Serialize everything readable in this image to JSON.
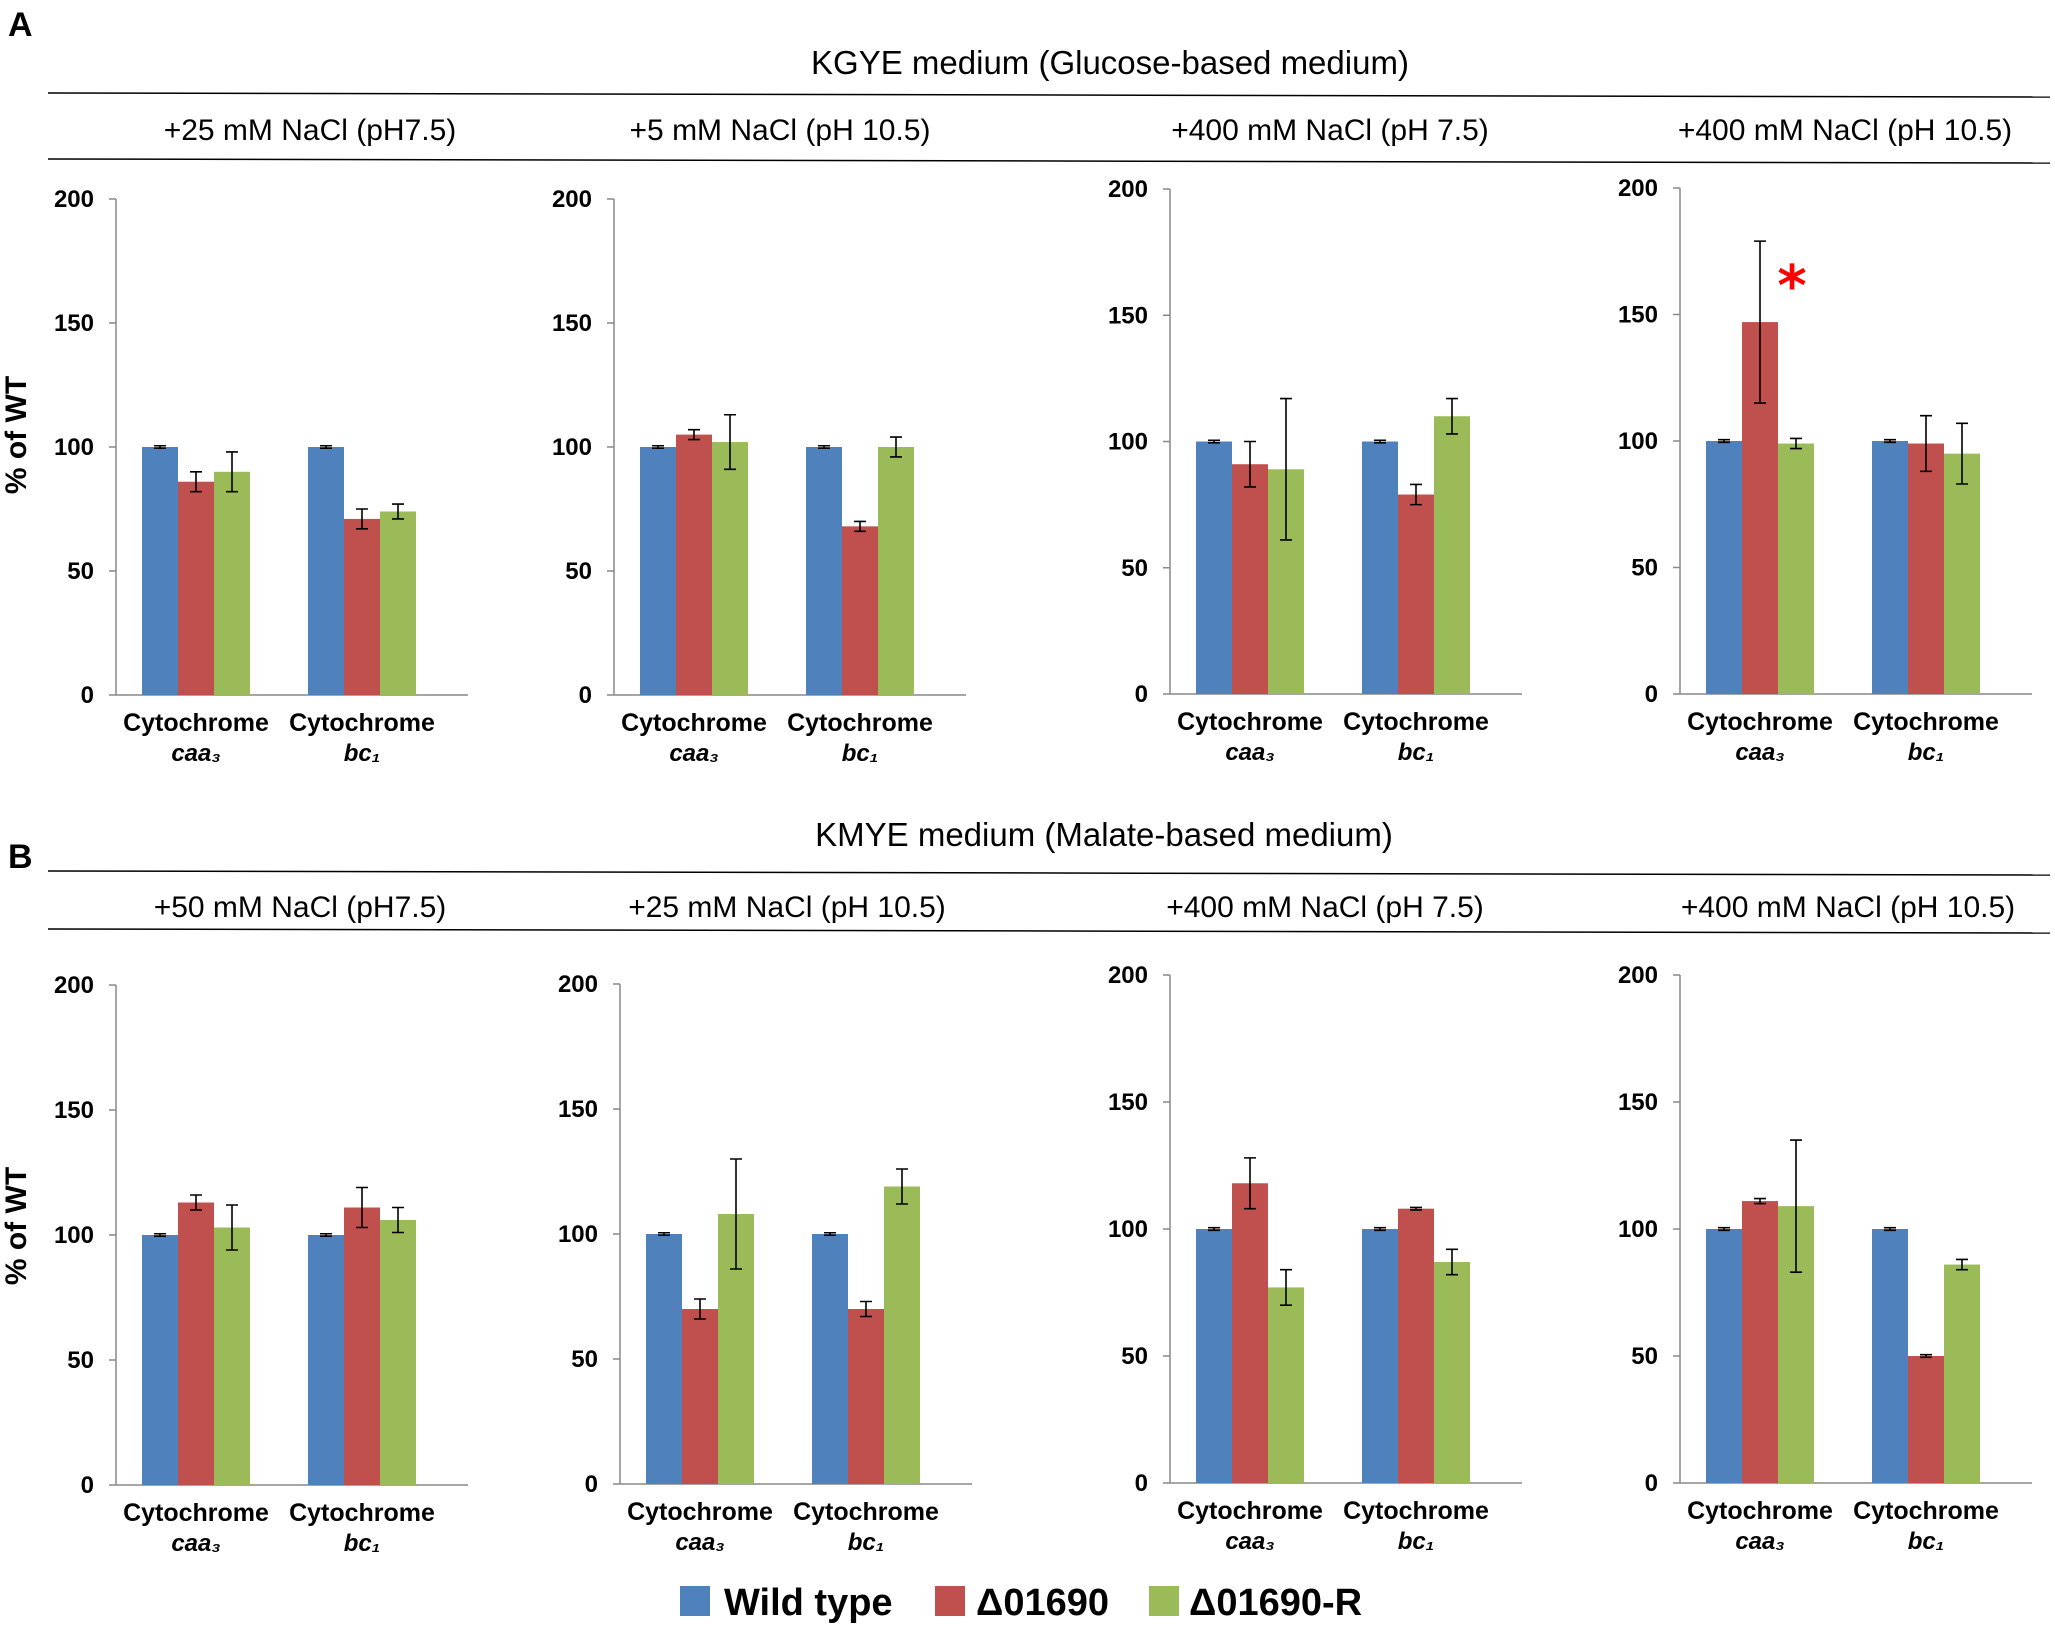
{
  "colors": {
    "Wild type": "#4f81bd",
    "Δ01690": "#c0504d",
    "Δ01690-R": "#9bbb59"
  },
  "legend": {
    "items": [
      {
        "label": "Wild type"
      },
      {
        "label": "Δ01690"
      },
      {
        "label": "Δ01690-R"
      }
    ]
  },
  "panels": [
    {
      "letter": "A",
      "medium": "KGYE medium (Glucose-based medium)",
      "ylabel": "% of WT"
    },
    {
      "letter": "B",
      "medium": "KMYE medium (Malate-based medium)",
      "ylabel": "% of WT"
    }
  ],
  "chart_data": [
    {
      "type": "bar",
      "panel": "A",
      "title": "+25 mM NaCl (pH7.5)",
      "categories": [
        {
          "name": "Cytochrome",
          "sub": "caa₃"
        },
        {
          "name": "Cytochrome",
          "sub": "bc₁"
        }
      ],
      "series": [
        {
          "name": "Wild type",
          "values": [
            100,
            100
          ],
          "errors": [
            0.5,
            0.5
          ]
        },
        {
          "name": "Δ01690",
          "values": [
            86,
            71
          ],
          "errors": [
            4,
            4
          ]
        },
        {
          "name": "Δ01690-R",
          "values": [
            90,
            74
          ],
          "errors": [
            8,
            3
          ]
        }
      ],
      "ylim": [
        0,
        200
      ],
      "yticks": [
        0,
        50,
        100,
        150,
        200
      ],
      "ylabel": "% of WT"
    },
    {
      "type": "bar",
      "panel": "A",
      "title": "+5 mM  NaCl (pH 10.5)",
      "categories": [
        {
          "name": "Cytochrome",
          "sub": "caa₃"
        },
        {
          "name": "Cytochrome",
          "sub": "bc₁"
        }
      ],
      "series": [
        {
          "name": "Wild type",
          "values": [
            100,
            100
          ],
          "errors": [
            0.5,
            0.5
          ]
        },
        {
          "name": "Δ01690",
          "values": [
            105,
            68
          ],
          "errors": [
            2,
            2
          ]
        },
        {
          "name": "Δ01690-R",
          "values": [
            102,
            100
          ],
          "errors": [
            11,
            4
          ]
        }
      ],
      "ylim": [
        0,
        200
      ],
      "yticks": [
        0,
        50,
        100,
        150,
        200
      ],
      "ylabel": ""
    },
    {
      "type": "bar",
      "panel": "A",
      "title": "+400 mM NaCl (pH 7.5)",
      "categories": [
        {
          "name": "Cytochrome",
          "sub": "caa₃"
        },
        {
          "name": "Cytochrome",
          "sub": "bc₁"
        }
      ],
      "series": [
        {
          "name": "Wild type",
          "values": [
            100,
            100
          ],
          "errors": [
            0.5,
            0.5
          ]
        },
        {
          "name": "Δ01690",
          "values": [
            91,
            79
          ],
          "errors": [
            9,
            4
          ]
        },
        {
          "name": "Δ01690-R",
          "values": [
            89,
            110
          ],
          "errors": [
            28,
            7
          ]
        }
      ],
      "ylim": [
        0,
        200
      ],
      "yticks": [
        0,
        50,
        100,
        150,
        200
      ],
      "ylabel": ""
    },
    {
      "type": "bar",
      "panel": "A",
      "title": "+400 mM NaCl (pH 10.5)",
      "categories": [
        {
          "name": "Cytochrome",
          "sub": "caa₃"
        },
        {
          "name": "Cytochrome",
          "sub": "bc₁"
        }
      ],
      "series": [
        {
          "name": "Wild type",
          "values": [
            100,
            100
          ],
          "errors": [
            0.5,
            0.5
          ]
        },
        {
          "name": "Δ01690",
          "values": [
            147,
            99
          ],
          "errors": [
            32,
            11
          ]
        },
        {
          "name": "Δ01690-R",
          "values": [
            99,
            95
          ],
          "errors": [
            2,
            12
          ]
        }
      ],
      "ylim": [
        0,
        200
      ],
      "yticks": [
        0,
        50,
        100,
        150,
        200
      ],
      "ylabel": "",
      "annotations": [
        {
          "text": "*",
          "category": 0,
          "series": 1,
          "color": "#ff0000"
        }
      ]
    },
    {
      "type": "bar",
      "panel": "B",
      "title": "+50 mM NaCl (pH7.5)",
      "categories": [
        {
          "name": "Cytochrome",
          "sub": "caa₃"
        },
        {
          "name": "Cytochrome",
          "sub": "bc₁"
        }
      ],
      "series": [
        {
          "name": "Wild type",
          "values": [
            100,
            100
          ],
          "errors": [
            0.5,
            0.5
          ]
        },
        {
          "name": "Δ01690",
          "values": [
            113,
            111
          ],
          "errors": [
            3,
            8
          ]
        },
        {
          "name": "Δ01690-R",
          "values": [
            103,
            106
          ],
          "errors": [
            9,
            5
          ]
        }
      ],
      "ylim": [
        0,
        200
      ],
      "yticks": [
        0,
        50,
        100,
        150,
        200
      ],
      "ylabel": "% of WT"
    },
    {
      "type": "bar",
      "panel": "B",
      "title": "+25 mM  NaCl (pH 10.5)",
      "categories": [
        {
          "name": "Cytochrome",
          "sub": "caa₃"
        },
        {
          "name": "Cytochrome",
          "sub": "bc₁"
        }
      ],
      "series": [
        {
          "name": "Wild type",
          "values": [
            100,
            100
          ],
          "errors": [
            0.5,
            0.5
          ]
        },
        {
          "name": "Δ01690",
          "values": [
            70,
            70
          ],
          "errors": [
            4,
            3
          ]
        },
        {
          "name": "Δ01690-R",
          "values": [
            108,
            119
          ],
          "errors": [
            22,
            7
          ]
        }
      ],
      "ylim": [
        0,
        200
      ],
      "yticks": [
        0,
        50,
        100,
        150,
        200
      ],
      "ylabel": ""
    },
    {
      "type": "bar",
      "panel": "B",
      "title": "+400 mM NaCl (pH 7.5)",
      "categories": [
        {
          "name": "Cytochrome",
          "sub": "caa₃"
        },
        {
          "name": "Cytochrome",
          "sub": "bc₁"
        }
      ],
      "series": [
        {
          "name": "Wild type",
          "values": [
            100,
            100
          ],
          "errors": [
            0.5,
            0.5
          ]
        },
        {
          "name": "Δ01690",
          "values": [
            118,
            108
          ],
          "errors": [
            10,
            0.5
          ]
        },
        {
          "name": "Δ01690-R",
          "values": [
            77,
            87
          ],
          "errors": [
            7,
            5
          ]
        }
      ],
      "ylim": [
        0,
        200
      ],
      "yticks": [
        0,
        50,
        100,
        150,
        200
      ],
      "ylabel": ""
    },
    {
      "type": "bar",
      "panel": "B",
      "title": "+400 mM NaCl (pH 10.5)",
      "categories": [
        {
          "name": "Cytochrome",
          "sub": "caa₃"
        },
        {
          "name": "Cytochrome",
          "sub": "bc₁"
        }
      ],
      "series": [
        {
          "name": "Wild type",
          "values": [
            100,
            100
          ],
          "errors": [
            0.5,
            0.5
          ]
        },
        {
          "name": "Δ01690",
          "values": [
            111,
            50
          ],
          "errors": [
            1,
            0.5
          ]
        },
        {
          "name": "Δ01690-R",
          "values": [
            109,
            86
          ],
          "errors": [
            26,
            2
          ]
        }
      ],
      "ylim": [
        0,
        200
      ],
      "yticks": [
        0,
        50,
        100,
        150,
        200
      ],
      "ylabel": ""
    }
  ]
}
